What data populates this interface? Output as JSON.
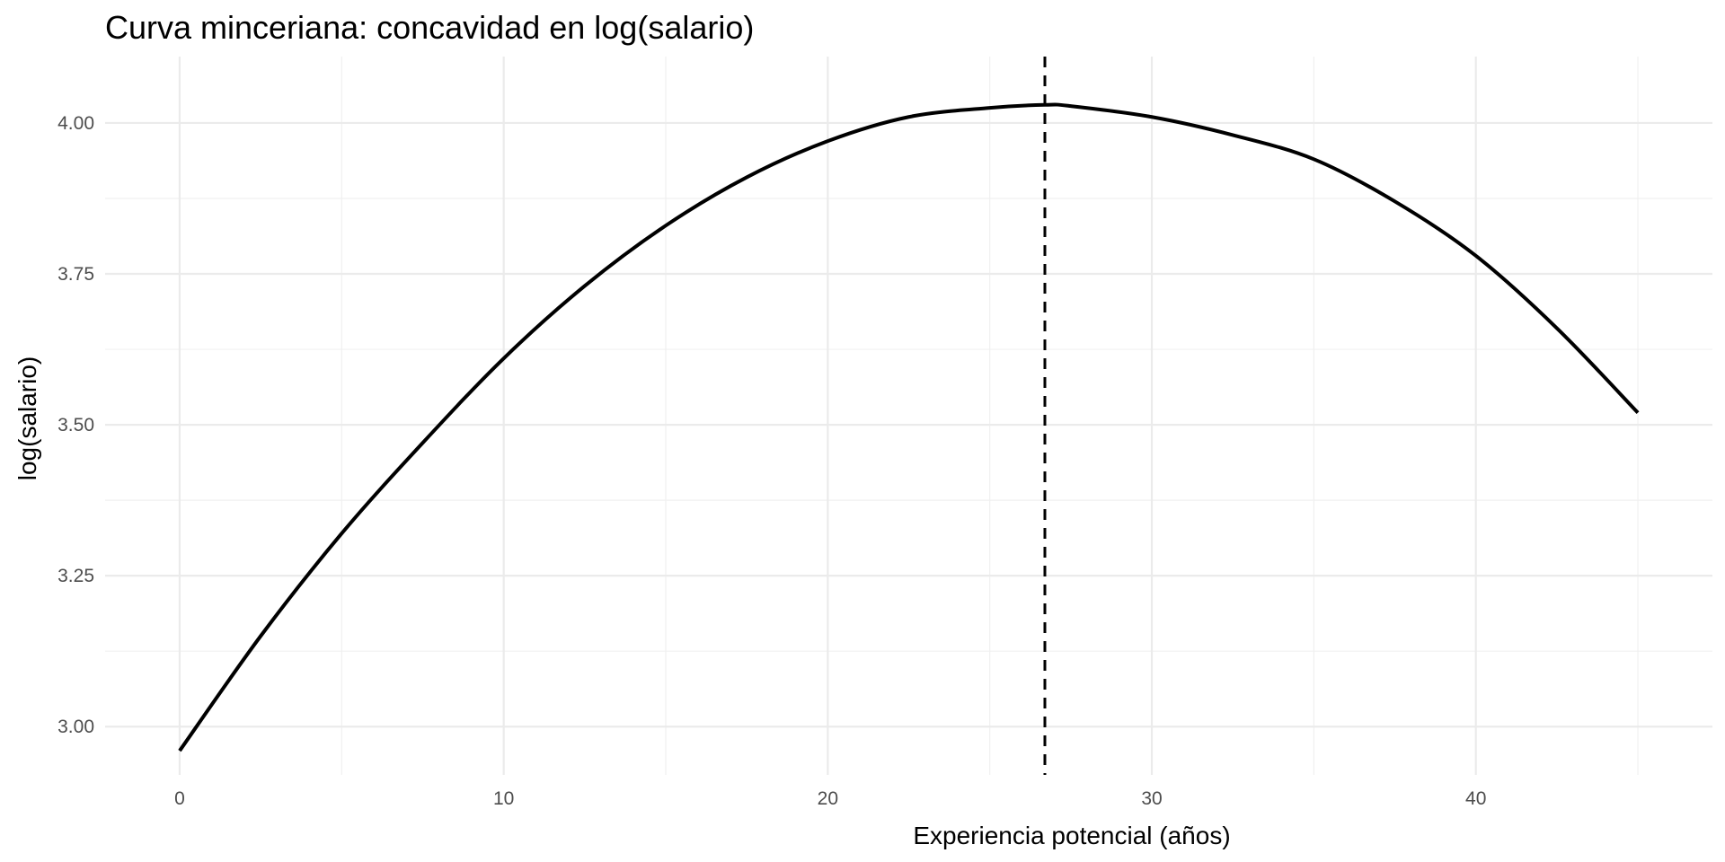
{
  "chart_data": {
    "type": "line",
    "title": "Curva minceriana: concavidad en log(salario)",
    "xlabel": "Experiencia potencial (años)",
    "ylabel": "log(salario)",
    "xlim": [
      -2.3,
      47.3
    ],
    "ylim": [
      2.92,
      4.11
    ],
    "x_ticks": [
      0,
      10,
      20,
      30,
      40
    ],
    "x_tick_labels": [
      "0",
      "10",
      "20",
      "30",
      "40"
    ],
    "y_ticks": [
      3.0,
      3.25,
      3.5,
      3.75,
      4.0
    ],
    "y_tick_labels": [
      "3.00",
      "3.25",
      "3.50",
      "3.75",
      "4.00"
    ],
    "grid": true,
    "legend": "none",
    "series": [
      {
        "x": [
          0,
          2.5,
          5,
          7.5,
          10,
          12.5,
          15,
          17.5,
          20,
          22.5,
          25,
          26.7,
          27.5,
          30,
          32.5,
          35,
          37.5,
          40,
          42.5,
          45
        ],
        "y": [
          2.96,
          3.15,
          3.32,
          3.47,
          3.61,
          3.73,
          3.83,
          3.91,
          3.97,
          4.01,
          4.025,
          4.03,
          4.028,
          4.01,
          3.98,
          3.94,
          3.87,
          3.78,
          3.66,
          3.52
        ],
        "color": "#000000"
      }
    ],
    "reference_lines": [
      {
        "orientation": "vertical",
        "x": 26.7,
        "style": "dashed",
        "color": "#000000"
      }
    ]
  }
}
